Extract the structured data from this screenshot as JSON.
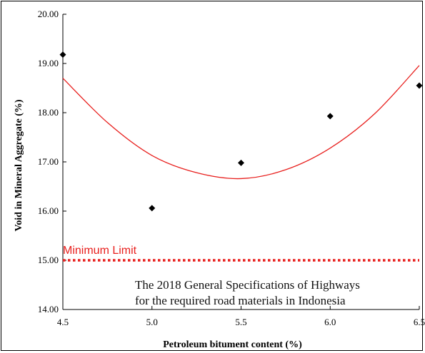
{
  "chart_data": {
    "type": "scatter",
    "xlabel": "Petroleum bitument content (%)",
    "ylabel": "Void in Mineral Aggregate (%)",
    "xlim": [
      4.5,
      6.5
    ],
    "ylim": [
      14.0,
      20.0
    ],
    "x_ticks": [
      "4.5",
      "5.0",
      "5.5",
      "6.0",
      "6.5"
    ],
    "y_ticks": [
      "14.00",
      "15.00",
      "16.00",
      "17.00",
      "18.00",
      "19.00",
      "20.00"
    ],
    "grid": false,
    "points": [
      {
        "x": 4.5,
        "y": 19.18
      },
      {
        "x": 5.0,
        "y": 16.06
      },
      {
        "x": 5.5,
        "y": 16.98
      },
      {
        "x": 6.0,
        "y": 17.93
      },
      {
        "x": 6.5,
        "y": 18.55
      }
    ],
    "trendline": {
      "type": "polynomial-2",
      "color": "#e8201e",
      "points": [
        {
          "x": 4.5,
          "y": 18.7
        },
        {
          "x": 4.75,
          "y": 17.8
        },
        {
          "x": 5.0,
          "y": 17.13
        },
        {
          "x": 5.25,
          "y": 16.78
        },
        {
          "x": 5.5,
          "y": 16.66
        },
        {
          "x": 5.75,
          "y": 16.84
        },
        {
          "x": 6.0,
          "y": 17.28
        },
        {
          "x": 6.25,
          "y": 17.98
        },
        {
          "x": 6.5,
          "y": 18.96
        }
      ]
    },
    "reference_line": {
      "label": "Minimum Limit",
      "y": 15.0,
      "color": "#e8201e",
      "style": "dotted"
    },
    "annotation": {
      "lines": [
        "The 2018 General Specifications of Highways",
        "for the required road materials in Indonesia"
      ]
    },
    "point_color": "#000000"
  }
}
